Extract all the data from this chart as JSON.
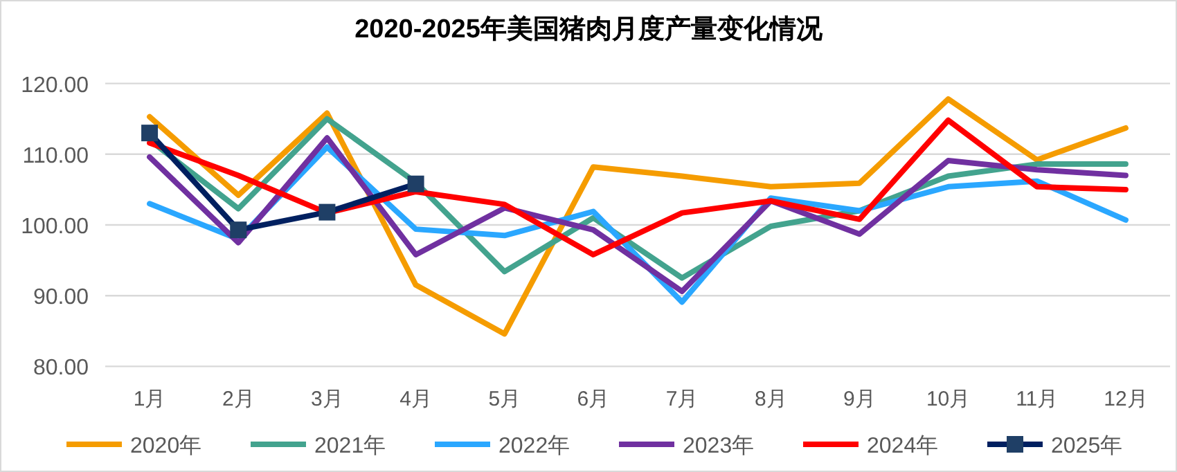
{
  "chart_data": {
    "type": "line",
    "title": "2020-2025年美国猪肉月度产量变化情况",
    "categories": [
      "1月",
      "2月",
      "3月",
      "4月",
      "5月",
      "6月",
      "7月",
      "8月",
      "9月",
      "10月",
      "11月",
      "12月"
    ],
    "ylim": [
      80,
      120
    ],
    "yticks": [
      {
        "value": 80,
        "label": "80.00"
      },
      {
        "value": 90,
        "label": "90.00"
      },
      {
        "value": 100,
        "label": "100.00"
      },
      {
        "value": 110,
        "label": "110.00"
      },
      {
        "value": 120,
        "label": "120.00"
      }
    ],
    "grid": "y",
    "legend": "bottom",
    "marker": "none",
    "series": [
      {
        "name": "2020年",
        "color": "#f59c00",
        "values": [
          115.3,
          104.2,
          115.8,
          91.5,
          84.6,
          108.2,
          106.9,
          105.4,
          105.9,
          117.8,
          109.2,
          113.7
        ]
      },
      {
        "name": "2021年",
        "color": "#43a38e",
        "values": [
          112,
          102.3,
          115,
          106,
          93.4,
          101,
          92.5,
          99.8,
          102,
          106.9,
          108.6,
          108.6
        ]
      },
      {
        "name": "2022年",
        "color": "#2aa7ff",
        "values": [
          103,
          98,
          111,
          99.4,
          98.5,
          101.9,
          89.1,
          103.8,
          102,
          105.4,
          106.2,
          100.7
        ]
      },
      {
        "name": "2023年",
        "color": "#7030a0",
        "values": [
          109.6,
          97.5,
          112.3,
          95.8,
          102.4,
          99.3,
          90.6,
          103.4,
          98.7,
          109.1,
          107.8,
          107
        ]
      },
      {
        "name": "2024年",
        "color": "#ff0000",
        "values": [
          111.6,
          107,
          101.7,
          104.7,
          102.9,
          95.8,
          101.7,
          103.4,
          100.8,
          114.8,
          105.4,
          105
        ]
      },
      {
        "name": "2025年",
        "color": "#002060",
        "marker": "square",
        "values": [
          113,
          99.3,
          101.8,
          105.8,
          null,
          null,
          null,
          null,
          null,
          null,
          null,
          null
        ]
      }
    ]
  }
}
